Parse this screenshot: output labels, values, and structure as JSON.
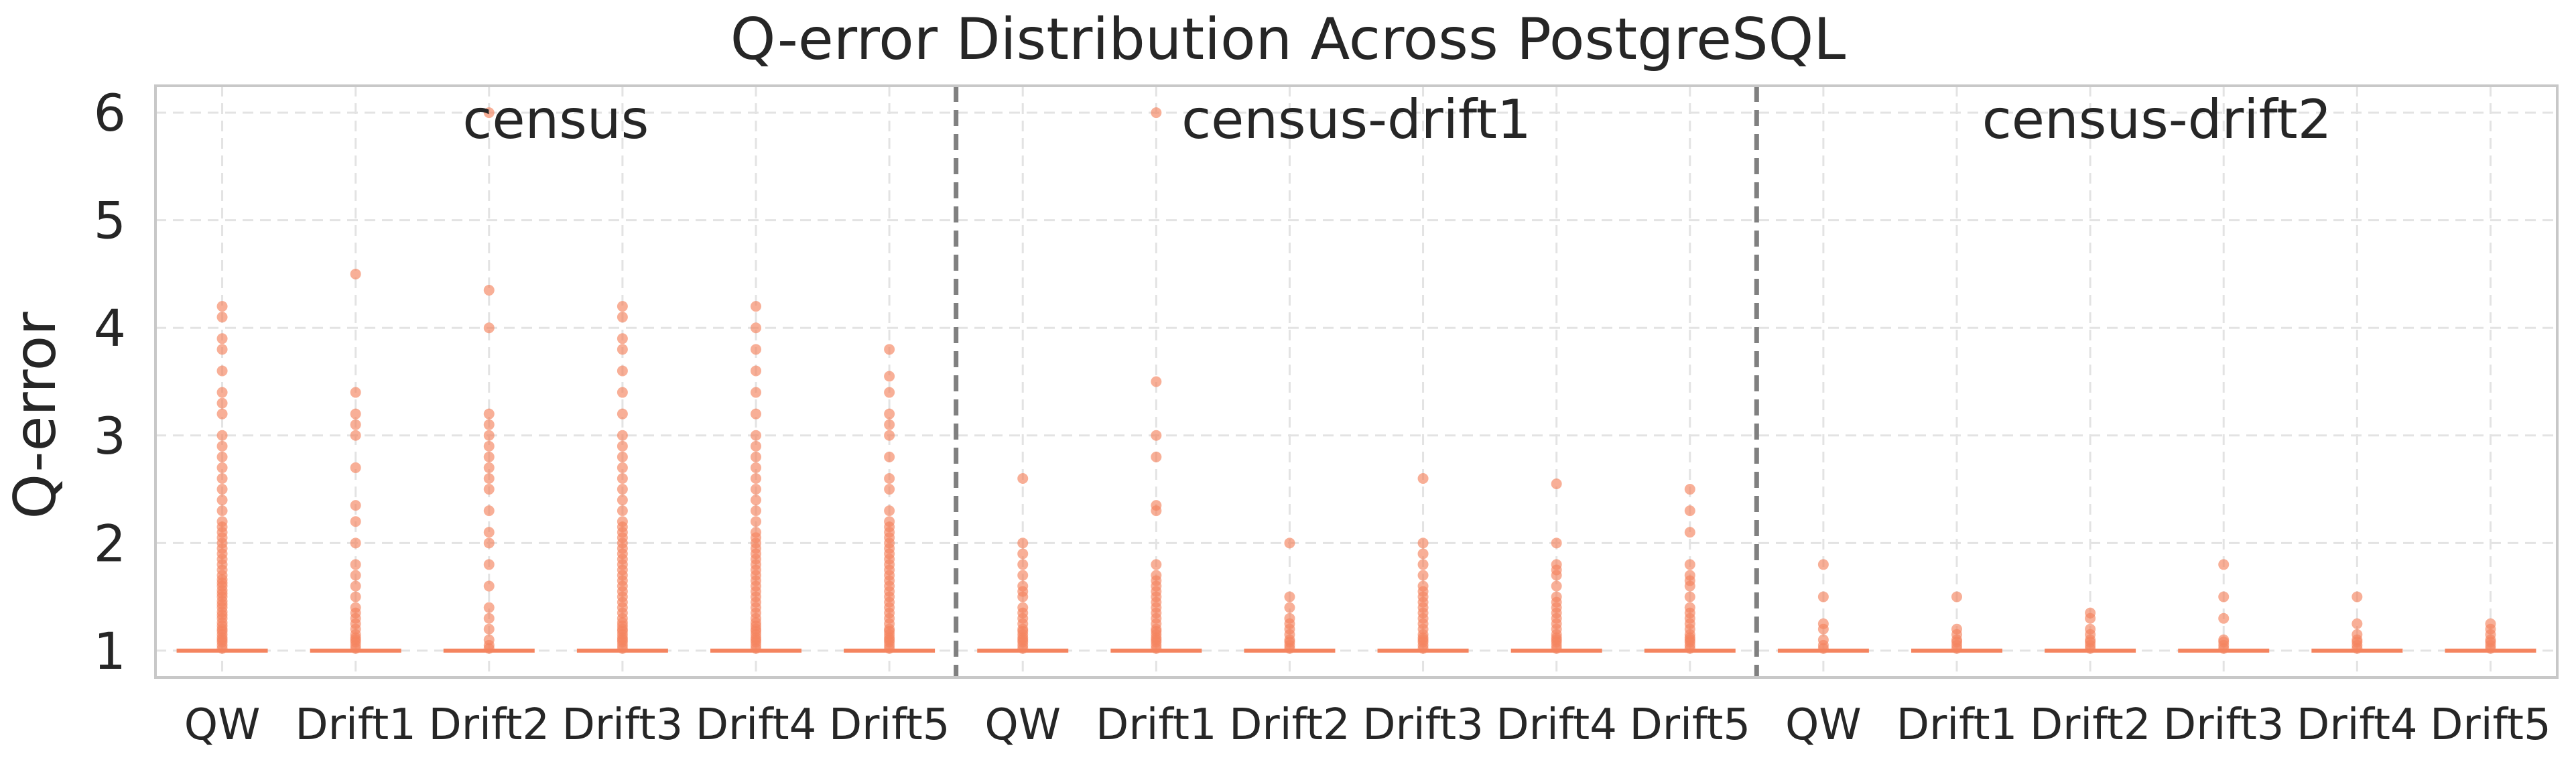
{
  "chart_data": {
    "type": "box",
    "title": "Q-error Distribution Across PostgreSQL",
    "xlabel": "",
    "ylabel": "Q-error",
    "ylim": [
      0.75,
      6.25
    ],
    "yticks": [
      "1",
      "2",
      "3",
      "4",
      "5",
      "6"
    ],
    "grid": true,
    "color": "#f4845f",
    "groups": [
      {
        "name": "census",
        "boxes": [
          {
            "label": "QW",
            "median": 1.0,
            "q1": 1.0,
            "q3": 1.0,
            "outliers": [
              1.02,
              1.05,
              1.08,
              1.1,
              1.12,
              1.15,
              1.18,
              1.2,
              1.23,
              1.26,
              1.3,
              1.33,
              1.36,
              1.4,
              1.43,
              1.46,
              1.5,
              1.53,
              1.56,
              1.6,
              1.63,
              1.66,
              1.7,
              1.75,
              1.8,
              1.85,
              1.9,
              1.95,
              2.0,
              2.05,
              2.1,
              2.15,
              2.2,
              2.3,
              2.4,
              2.5,
              2.6,
              2.7,
              2.8,
              2.9,
              3.0,
              3.2,
              3.3,
              3.4,
              3.6,
              3.8,
              3.9,
              4.1,
              4.2
            ]
          },
          {
            "label": "Drift1",
            "median": 1.0,
            "q1": 1.0,
            "q3": 1.0,
            "outliers": [
              1.02,
              1.05,
              1.08,
              1.1,
              1.12,
              1.15,
              1.2,
              1.25,
              1.3,
              1.35,
              1.4,
              1.5,
              1.6,
              1.7,
              1.8,
              2.0,
              2.2,
              2.35,
              2.7,
              3.0,
              3.1,
              3.2,
              3.4,
              4.5
            ]
          },
          {
            "label": "Drift2",
            "median": 1.0,
            "q1": 1.0,
            "q3": 1.0,
            "outliers": [
              1.02,
              1.05,
              1.1,
              1.2,
              1.3,
              1.4,
              1.6,
              1.8,
              2.0,
              2.1,
              2.3,
              2.5,
              2.6,
              2.7,
              2.8,
              2.9,
              3.0,
              3.1,
              3.2,
              4.0,
              4.35,
              6.0
            ]
          },
          {
            "label": "Drift3",
            "median": 1.0,
            "q1": 1.0,
            "q3": 1.0,
            "outliers": [
              1.02,
              1.05,
              1.08,
              1.1,
              1.12,
              1.15,
              1.18,
              1.2,
              1.23,
              1.26,
              1.3,
              1.35,
              1.4,
              1.45,
              1.5,
              1.55,
              1.6,
              1.65,
              1.7,
              1.75,
              1.8,
              1.85,
              1.9,
              1.95,
              2.0,
              2.05,
              2.1,
              2.15,
              2.2,
              2.3,
              2.4,
              2.5,
              2.6,
              2.7,
              2.8,
              2.9,
              3.0,
              3.2,
              3.4,
              3.6,
              3.8,
              3.9,
              4.1,
              4.2
            ]
          },
          {
            "label": "Drift4",
            "median": 1.0,
            "q1": 1.0,
            "q3": 1.0,
            "outliers": [
              1.02,
              1.05,
              1.08,
              1.1,
              1.12,
              1.15,
              1.18,
              1.2,
              1.23,
              1.26,
              1.3,
              1.35,
              1.4,
              1.45,
              1.5,
              1.55,
              1.6,
              1.65,
              1.7,
              1.75,
              1.8,
              1.85,
              1.9,
              1.95,
              2.0,
              2.05,
              2.1,
              2.2,
              2.3,
              2.4,
              2.5,
              2.6,
              2.7,
              2.8,
              2.9,
              3.0,
              3.2,
              3.4,
              3.6,
              3.8,
              4.0,
              4.2
            ]
          },
          {
            "label": "Drift5",
            "median": 1.0,
            "q1": 1.0,
            "q3": 1.0,
            "outliers": [
              1.02,
              1.05,
              1.08,
              1.1,
              1.12,
              1.15,
              1.18,
              1.2,
              1.25,
              1.3,
              1.35,
              1.4,
              1.45,
              1.5,
              1.55,
              1.6,
              1.65,
              1.7,
              1.75,
              1.8,
              1.85,
              1.9,
              1.95,
              2.0,
              2.05,
              2.1,
              2.15,
              2.2,
              2.3,
              2.5,
              2.6,
              2.8,
              3.0,
              3.1,
              3.2,
              3.4,
              3.55,
              3.8
            ]
          }
        ]
      },
      {
        "name": "census-drift1",
        "boxes": [
          {
            "label": "QW",
            "median": 1.0,
            "q1": 1.0,
            "q3": 1.0,
            "outliers": [
              1.02,
              1.05,
              1.08,
              1.1,
              1.12,
              1.15,
              1.18,
              1.2,
              1.25,
              1.3,
              1.35,
              1.4,
              1.5,
              1.55,
              1.6,
              1.7,
              1.8,
              1.9,
              2.0,
              2.6
            ]
          },
          {
            "label": "Drift1",
            "median": 1.0,
            "q1": 1.0,
            "q3": 1.0,
            "outliers": [
              1.02,
              1.05,
              1.08,
              1.1,
              1.12,
              1.15,
              1.18,
              1.2,
              1.25,
              1.3,
              1.35,
              1.4,
              1.45,
              1.5,
              1.55,
              1.6,
              1.65,
              1.7,
              1.8,
              2.3,
              2.35,
              2.8,
              3.0,
              3.5,
              6.0
            ]
          },
          {
            "label": "Drift2",
            "median": 1.0,
            "q1": 1.0,
            "q3": 1.0,
            "outliers": [
              1.02,
              1.05,
              1.08,
              1.1,
              1.15,
              1.2,
              1.25,
              1.3,
              1.4,
              1.5,
              2.0
            ]
          },
          {
            "label": "Drift3",
            "median": 1.0,
            "q1": 1.0,
            "q3": 1.0,
            "outliers": [
              1.02,
              1.05,
              1.08,
              1.1,
              1.12,
              1.15,
              1.2,
              1.25,
              1.3,
              1.35,
              1.4,
              1.45,
              1.5,
              1.55,
              1.6,
              1.7,
              1.8,
              1.9,
              2.0,
              2.6
            ]
          },
          {
            "label": "Drift4",
            "median": 1.0,
            "q1": 1.0,
            "q3": 1.0,
            "outliers": [
              1.02,
              1.05,
              1.08,
              1.1,
              1.12,
              1.15,
              1.2,
              1.25,
              1.3,
              1.35,
              1.4,
              1.45,
              1.5,
              1.6,
              1.7,
              1.75,
              1.8,
              2.0,
              2.55
            ]
          },
          {
            "label": "Drift5",
            "median": 1.0,
            "q1": 1.0,
            "q3": 1.0,
            "outliers": [
              1.02,
              1.05,
              1.08,
              1.1,
              1.12,
              1.15,
              1.2,
              1.25,
              1.3,
              1.35,
              1.4,
              1.5,
              1.6,
              1.65,
              1.7,
              1.8,
              2.1,
              2.3,
              2.5
            ]
          }
        ]
      },
      {
        "name": "census-drift2",
        "boxes": [
          {
            "label": "QW",
            "median": 1.0,
            "q1": 1.0,
            "q3": 1.0,
            "outliers": [
              1.02,
              1.05,
              1.1,
              1.2,
              1.25,
              1.5,
              1.8
            ]
          },
          {
            "label": "Drift1",
            "median": 1.0,
            "q1": 1.0,
            "q3": 1.0,
            "outliers": [
              1.02,
              1.05,
              1.08,
              1.1,
              1.15,
              1.2,
              1.5
            ]
          },
          {
            "label": "Drift2",
            "median": 1.0,
            "q1": 1.0,
            "q3": 1.0,
            "outliers": [
              1.02,
              1.05,
              1.08,
              1.1,
              1.15,
              1.2,
              1.3,
              1.35
            ]
          },
          {
            "label": "Drift3",
            "median": 1.0,
            "q1": 1.0,
            "q3": 1.0,
            "outliers": [
              1.02,
              1.05,
              1.08,
              1.1,
              1.3,
              1.5,
              1.8
            ]
          },
          {
            "label": "Drift4",
            "median": 1.0,
            "q1": 1.0,
            "q3": 1.0,
            "outliers": [
              1.02,
              1.05,
              1.08,
              1.1,
              1.15,
              1.25,
              1.5
            ]
          },
          {
            "label": "Drift5",
            "median": 1.0,
            "q1": 1.0,
            "q3": 1.0,
            "outliers": [
              1.02,
              1.05,
              1.08,
              1.1,
              1.15,
              1.2,
              1.25
            ]
          }
        ]
      }
    ]
  }
}
